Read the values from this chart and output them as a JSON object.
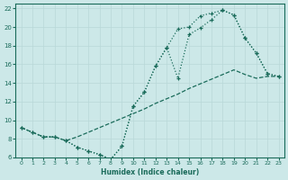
{
  "xlabel": "Humidex (Indice chaleur)",
  "xlim": [
    -0.5,
    23.5
  ],
  "ylim": [
    6,
    22.5
  ],
  "xticks": [
    0,
    1,
    2,
    3,
    4,
    5,
    6,
    7,
    8,
    9,
    10,
    11,
    12,
    13,
    14,
    15,
    16,
    17,
    18,
    19,
    20,
    21,
    22,
    23
  ],
  "yticks": [
    6,
    8,
    10,
    12,
    14,
    16,
    18,
    20,
    22
  ],
  "bg_color": "#cce8e8",
  "line_color": "#1a6b5a",
  "grid_color": "#b8d8d8",
  "line1_x": [
    0,
    1,
    2,
    3,
    4,
    5,
    6,
    7,
    8,
    9,
    10,
    11,
    12,
    13,
    14,
    15,
    16,
    17,
    18,
    19,
    20,
    21,
    22,
    23
  ],
  "line1_y": [
    9.2,
    8.7,
    8.2,
    8.2,
    7.8,
    7.1,
    6.7,
    6.3,
    5.8,
    7.2,
    11.5,
    13.0,
    15.8,
    17.8,
    14.5,
    19.2,
    19.9,
    20.8,
    21.8,
    21.3,
    18.8,
    17.2,
    15.0,
    14.7
  ],
  "line2_x": [
    0,
    1,
    2,
    3,
    4,
    5,
    6,
    7,
    8,
    9,
    10,
    11,
    12,
    13,
    14,
    15,
    16,
    17,
    18,
    19,
    20,
    21,
    22,
    23
  ],
  "line2_y": [
    9.2,
    8.7,
    8.2,
    8.2,
    7.8,
    8.2,
    8.7,
    9.2,
    9.7,
    10.2,
    10.7,
    11.2,
    11.8,
    12.3,
    12.8,
    13.4,
    13.9,
    14.4,
    14.9,
    15.4,
    14.9,
    14.5,
    14.7,
    14.7
  ],
  "line3_x": [
    0,
    1,
    2,
    3,
    4,
    5,
    6,
    7,
    8,
    9,
    10,
    11,
    12,
    13,
    14,
    15,
    16,
    17,
    18,
    19,
    20,
    21,
    22,
    23
  ],
  "line3_y": [
    9.2,
    8.7,
    8.2,
    8.2,
    7.8,
    7.1,
    6.7,
    6.3,
    5.8,
    7.2,
    11.5,
    13.0,
    15.8,
    17.8,
    19.8,
    20.0,
    21.2,
    21.5,
    21.8,
    21.3,
    18.8,
    17.2,
    15.0,
    14.7
  ]
}
